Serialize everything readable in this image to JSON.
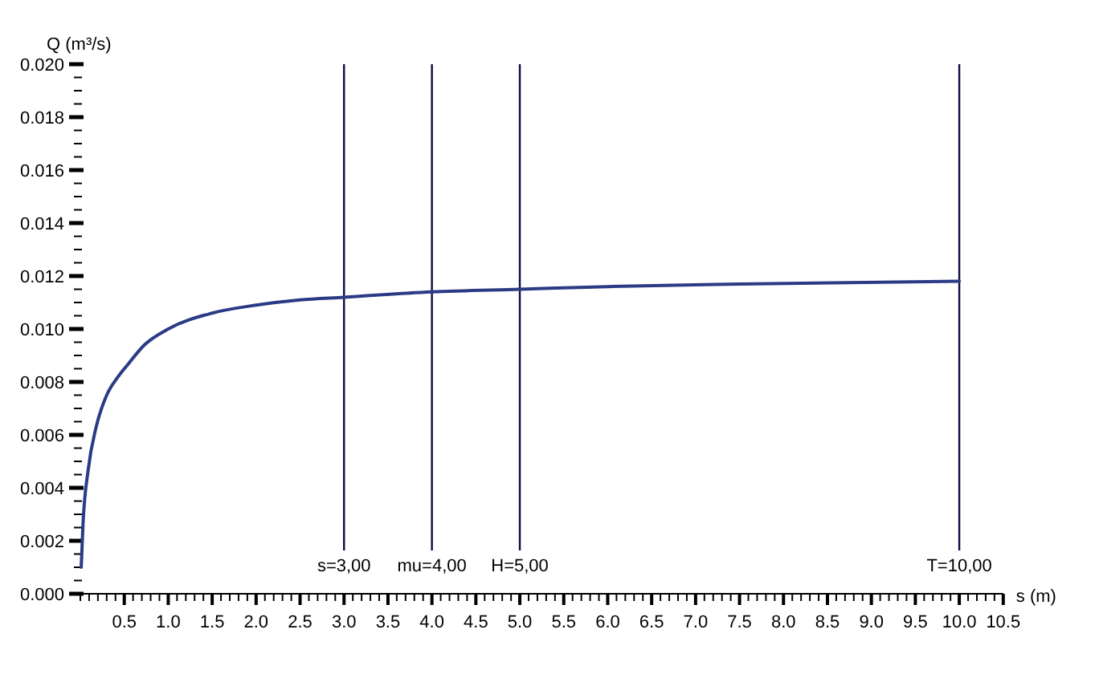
{
  "chart_data": {
    "type": "line",
    "xlabel": "s (m)",
    "ylabel": "Q (m³/s)",
    "x": [
      0.01,
      0.03,
      0.09,
      0.18,
      0.3,
      0.43,
      0.55,
      0.73,
      1.0,
      1.5,
      2.0,
      2.5,
      3.0,
      4.0,
      5.0,
      6.0,
      7.5,
      10.0
    ],
    "series": [
      {
        "color": "#2b3a84",
        "values": [
          0.001,
          0.0026,
          0.0047,
          0.0063,
          0.0075,
          0.0082,
          0.0087,
          0.0094,
          0.01,
          0.0106,
          0.0109,
          0.0111,
          0.0112,
          0.0114,
          0.0115,
          0.0116,
          0.0117,
          0.0118
        ]
      }
    ],
    "xlim": [
      0,
      10.5
    ],
    "ylim": [
      0,
      0.02
    ],
    "xticks": [
      {
        "value": 0,
        "label": null
      },
      {
        "value": 0.1,
        "label": null
      },
      {
        "value": 0.2,
        "label": null
      },
      {
        "value": 0.3,
        "label": null
      },
      {
        "value": 0.4,
        "label": null
      },
      {
        "value": 0.5,
        "label": "0.5"
      },
      {
        "value": 0.6,
        "label": null
      },
      {
        "value": 0.7,
        "label": null
      },
      {
        "value": 0.8,
        "label": null
      },
      {
        "value": 0.9,
        "label": null
      },
      {
        "value": 1,
        "label": "1.0"
      },
      {
        "value": 1.1,
        "label": null
      },
      {
        "value": 1.2,
        "label": null
      },
      {
        "value": 1.3,
        "label": null
      },
      {
        "value": 1.4,
        "label": null
      },
      {
        "value": 1.5,
        "label": "1.5"
      },
      {
        "value": 1.6,
        "label": null
      },
      {
        "value": 1.7,
        "label": null
      },
      {
        "value": 1.8,
        "label": null
      },
      {
        "value": 1.9,
        "label": null
      },
      {
        "value": 2,
        "label": "2.0"
      },
      {
        "value": 2.1,
        "label": null
      },
      {
        "value": 2.2,
        "label": null
      },
      {
        "value": 2.3,
        "label": null
      },
      {
        "value": 2.4,
        "label": null
      },
      {
        "value": 2.5,
        "label": "2.5"
      },
      {
        "value": 2.6,
        "label": null
      },
      {
        "value": 2.7,
        "label": null
      },
      {
        "value": 2.8,
        "label": null
      },
      {
        "value": 2.9,
        "label": null
      },
      {
        "value": 3,
        "label": "3.0"
      },
      {
        "value": 3.1,
        "label": null
      },
      {
        "value": 3.2,
        "label": null
      },
      {
        "value": 3.3,
        "label": null
      },
      {
        "value": 3.4,
        "label": null
      },
      {
        "value": 3.5,
        "label": "3.5"
      },
      {
        "value": 3.6,
        "label": null
      },
      {
        "value": 3.7,
        "label": null
      },
      {
        "value": 3.8,
        "label": null
      },
      {
        "value": 3.9,
        "label": null
      },
      {
        "value": 4,
        "label": "4.0"
      },
      {
        "value": 4.1,
        "label": null
      },
      {
        "value": 4.2,
        "label": null
      },
      {
        "value": 4.3,
        "label": null
      },
      {
        "value": 4.4,
        "label": null
      },
      {
        "value": 4.5,
        "label": "4.5"
      },
      {
        "value": 4.6,
        "label": null
      },
      {
        "value": 4.7,
        "label": null
      },
      {
        "value": 4.8,
        "label": null
      },
      {
        "value": 4.9,
        "label": null
      },
      {
        "value": 5,
        "label": "5.0"
      },
      {
        "value": 5.1,
        "label": null
      },
      {
        "value": 5.2,
        "label": null
      },
      {
        "value": 5.3,
        "label": null
      },
      {
        "value": 5.4,
        "label": null
      },
      {
        "value": 5.5,
        "label": "5.5"
      },
      {
        "value": 5.6,
        "label": null
      },
      {
        "value": 5.7,
        "label": null
      },
      {
        "value": 5.8,
        "label": null
      },
      {
        "value": 5.9,
        "label": null
      },
      {
        "value": 6,
        "label": "6.0"
      },
      {
        "value": 6.1,
        "label": null
      },
      {
        "value": 6.2,
        "label": null
      },
      {
        "value": 6.3,
        "label": null
      },
      {
        "value": 6.4,
        "label": null
      },
      {
        "value": 6.5,
        "label": "6.5"
      },
      {
        "value": 6.6,
        "label": null
      },
      {
        "value": 6.7,
        "label": null
      },
      {
        "value": 6.8,
        "label": null
      },
      {
        "value": 6.9,
        "label": null
      },
      {
        "value": 7,
        "label": "7.0"
      },
      {
        "value": 7.1,
        "label": null
      },
      {
        "value": 7.2,
        "label": null
      },
      {
        "value": 7.3,
        "label": null
      },
      {
        "value": 7.4,
        "label": null
      },
      {
        "value": 7.5,
        "label": "7.5"
      },
      {
        "value": 7.6,
        "label": null
      },
      {
        "value": 7.7,
        "label": null
      },
      {
        "value": 7.8,
        "label": null
      },
      {
        "value": 7.9,
        "label": null
      },
      {
        "value": 8,
        "label": "8.0"
      },
      {
        "value": 8.1,
        "label": null
      },
      {
        "value": 8.2,
        "label": null
      },
      {
        "value": 8.3,
        "label": null
      },
      {
        "value": 8.4,
        "label": null
      },
      {
        "value": 8.5,
        "label": "8.5"
      },
      {
        "value": 8.6,
        "label": null
      },
      {
        "value": 8.7,
        "label": null
      },
      {
        "value": 8.8,
        "label": null
      },
      {
        "value": 8.9,
        "label": null
      },
      {
        "value": 9,
        "label": "9.0"
      },
      {
        "value": 9.1,
        "label": null
      },
      {
        "value": 9.2,
        "label": null
      },
      {
        "value": 9.3,
        "label": null
      },
      {
        "value": 9.4,
        "label": null
      },
      {
        "value": 9.5,
        "label": "9.5"
      },
      {
        "value": 9.6,
        "label": null
      },
      {
        "value": 9.7,
        "label": null
      },
      {
        "value": 9.8,
        "label": null
      },
      {
        "value": 9.9,
        "label": null
      },
      {
        "value": 10,
        "label": "10.0"
      },
      {
        "value": 10.1,
        "label": null
      },
      {
        "value": 10.2,
        "label": null
      },
      {
        "value": 10.3,
        "label": null
      },
      {
        "value": 10.4,
        "label": null
      },
      {
        "value": 10.5,
        "label": "10.5"
      }
    ],
    "yticks": [
      {
        "value": 0,
        "label": "0.000"
      },
      {
        "value": 0.0005,
        "label": null
      },
      {
        "value": 0.001,
        "label": null
      },
      {
        "value": 0.0015,
        "label": null
      },
      {
        "value": 0.002,
        "label": "0.002"
      },
      {
        "value": 0.0025,
        "label": null
      },
      {
        "value": 0.003,
        "label": null
      },
      {
        "value": 0.0035,
        "label": null
      },
      {
        "value": 0.004,
        "label": "0.004"
      },
      {
        "value": 0.0045,
        "label": null
      },
      {
        "value": 0.005,
        "label": null
      },
      {
        "value": 0.0055,
        "label": null
      },
      {
        "value": 0.006,
        "label": "0.006"
      },
      {
        "value": 0.0065,
        "label": null
      },
      {
        "value": 0.007,
        "label": null
      },
      {
        "value": 0.0075,
        "label": null
      },
      {
        "value": 0.008,
        "label": "0.008"
      },
      {
        "value": 0.0085,
        "label": null
      },
      {
        "value": 0.009,
        "label": null
      },
      {
        "value": 0.0095,
        "label": null
      },
      {
        "value": 0.01,
        "label": "0.010"
      },
      {
        "value": 0.0105,
        "label": null
      },
      {
        "value": 0.011,
        "label": null
      },
      {
        "value": 0.0115,
        "label": null
      },
      {
        "value": 0.012,
        "label": "0.012"
      },
      {
        "value": 0.0125,
        "label": null
      },
      {
        "value": 0.013,
        "label": null
      },
      {
        "value": 0.0135,
        "label": null
      },
      {
        "value": 0.014,
        "label": "0.014"
      },
      {
        "value": 0.0145,
        "label": null
      },
      {
        "value": 0.015,
        "label": null
      },
      {
        "value": 0.0155,
        "label": null
      },
      {
        "value": 0.016,
        "label": "0.016"
      },
      {
        "value": 0.0165,
        "label": null
      },
      {
        "value": 0.017,
        "label": null
      },
      {
        "value": 0.0175,
        "label": null
      },
      {
        "value": 0.018,
        "label": "0.018"
      },
      {
        "value": 0.0185,
        "label": null
      },
      {
        "value": 0.019,
        "label": null
      },
      {
        "value": 0.0195,
        "label": null
      },
      {
        "value": 0.02,
        "label": "0.020"
      }
    ],
    "ref_lines": [
      {
        "axis": "x",
        "value": 3,
        "label": "s=3,00",
        "color": "#0c0c46"
      },
      {
        "axis": "x",
        "value": 4,
        "label": "mu=4,00",
        "color": "#0c0c46"
      },
      {
        "axis": "x",
        "value": 5,
        "label": "H=5,00",
        "color": "#0c0c46"
      },
      {
        "axis": "x",
        "value": 10,
        "label": "T=10,00",
        "color": "#0c0c46"
      }
    ]
  }
}
